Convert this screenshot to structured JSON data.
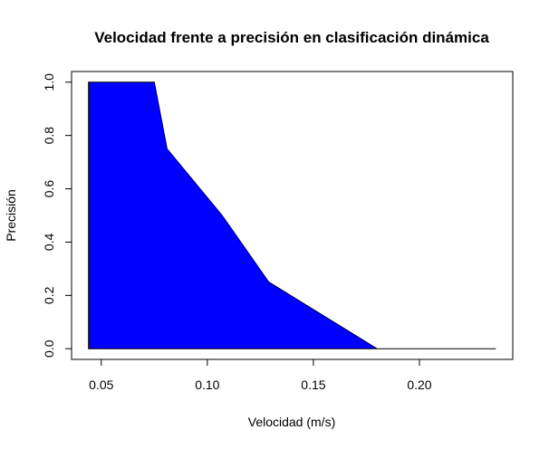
{
  "chart_data": {
    "type": "area",
    "title": "Velocidad frente a precisión en clasificación dinámica",
    "xlabel": "Velocidad (m/s)",
    "ylabel": "Precisión",
    "xlim": [
      0.036,
      0.244
    ],
    "ylim": [
      -0.04,
      1.04
    ],
    "x_ticks": [
      0.05,
      0.1,
      0.15,
      0.2
    ],
    "x_tick_labels": [
      "0.05",
      "0.10",
      "0.15",
      "0.20"
    ],
    "y_ticks": [
      0.0,
      0.2,
      0.4,
      0.6,
      0.8,
      1.0
    ],
    "y_tick_labels": [
      "0.0",
      "0.2",
      "0.4",
      "0.6",
      "0.8",
      "1.0"
    ],
    "grid": false,
    "legend": "none",
    "fill_color": "#0000ff",
    "series": [
      {
        "x": [
          0.044,
          0.075,
          0.081,
          0.107,
          0.129,
          0.18,
          0.236
        ],
        "y": [
          1.0,
          1.0,
          0.75,
          0.5,
          0.25,
          0.0,
          0.0
        ]
      }
    ]
  }
}
